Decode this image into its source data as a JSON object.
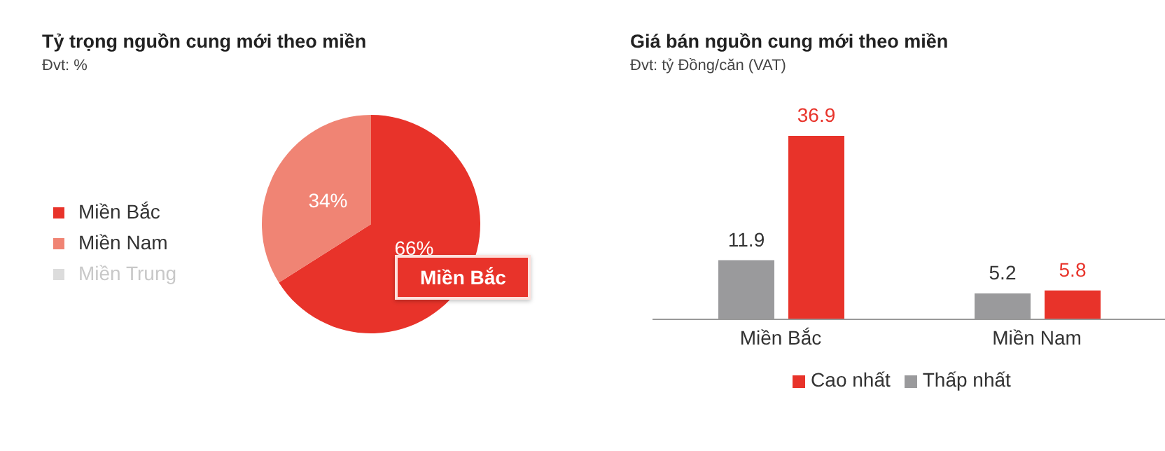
{
  "chart_data": [
    {
      "type": "pie",
      "title": "Tỷ trọng nguồn cung mới theo miền",
      "subtitle": "Đvt: %",
      "categories": [
        "Miền Bắc",
        "Miền Nam",
        "Miền Trung"
      ],
      "values": [
        66,
        34,
        0
      ],
      "colors": [
        "#e8332a",
        "#f08474",
        "#dcdcdc"
      ],
      "value_labels": [
        "66%",
        "34%",
        null
      ],
      "legend": "left",
      "annotations": [
        "Miền Bắc"
      ]
    },
    {
      "type": "bar",
      "title": "Giá bán nguồn cung mới theo miền",
      "subtitle": "Đvt: tỷ Đồng/căn (VAT)",
      "categories": [
        "Miền Bắc",
        "Miền Nam"
      ],
      "tick_labels": "x",
      "data_labels": true,
      "legend": "bottom",
      "series": [
        {
          "name": "Thấp nhất",
          "color": "#9a9a9c",
          "values": [
            11.9,
            5.2
          ]
        },
        {
          "name": "Cao nhất",
          "color": "#e8332a",
          "values": [
            36.9,
            5.8
          ]
        }
      ]
    }
  ]
}
